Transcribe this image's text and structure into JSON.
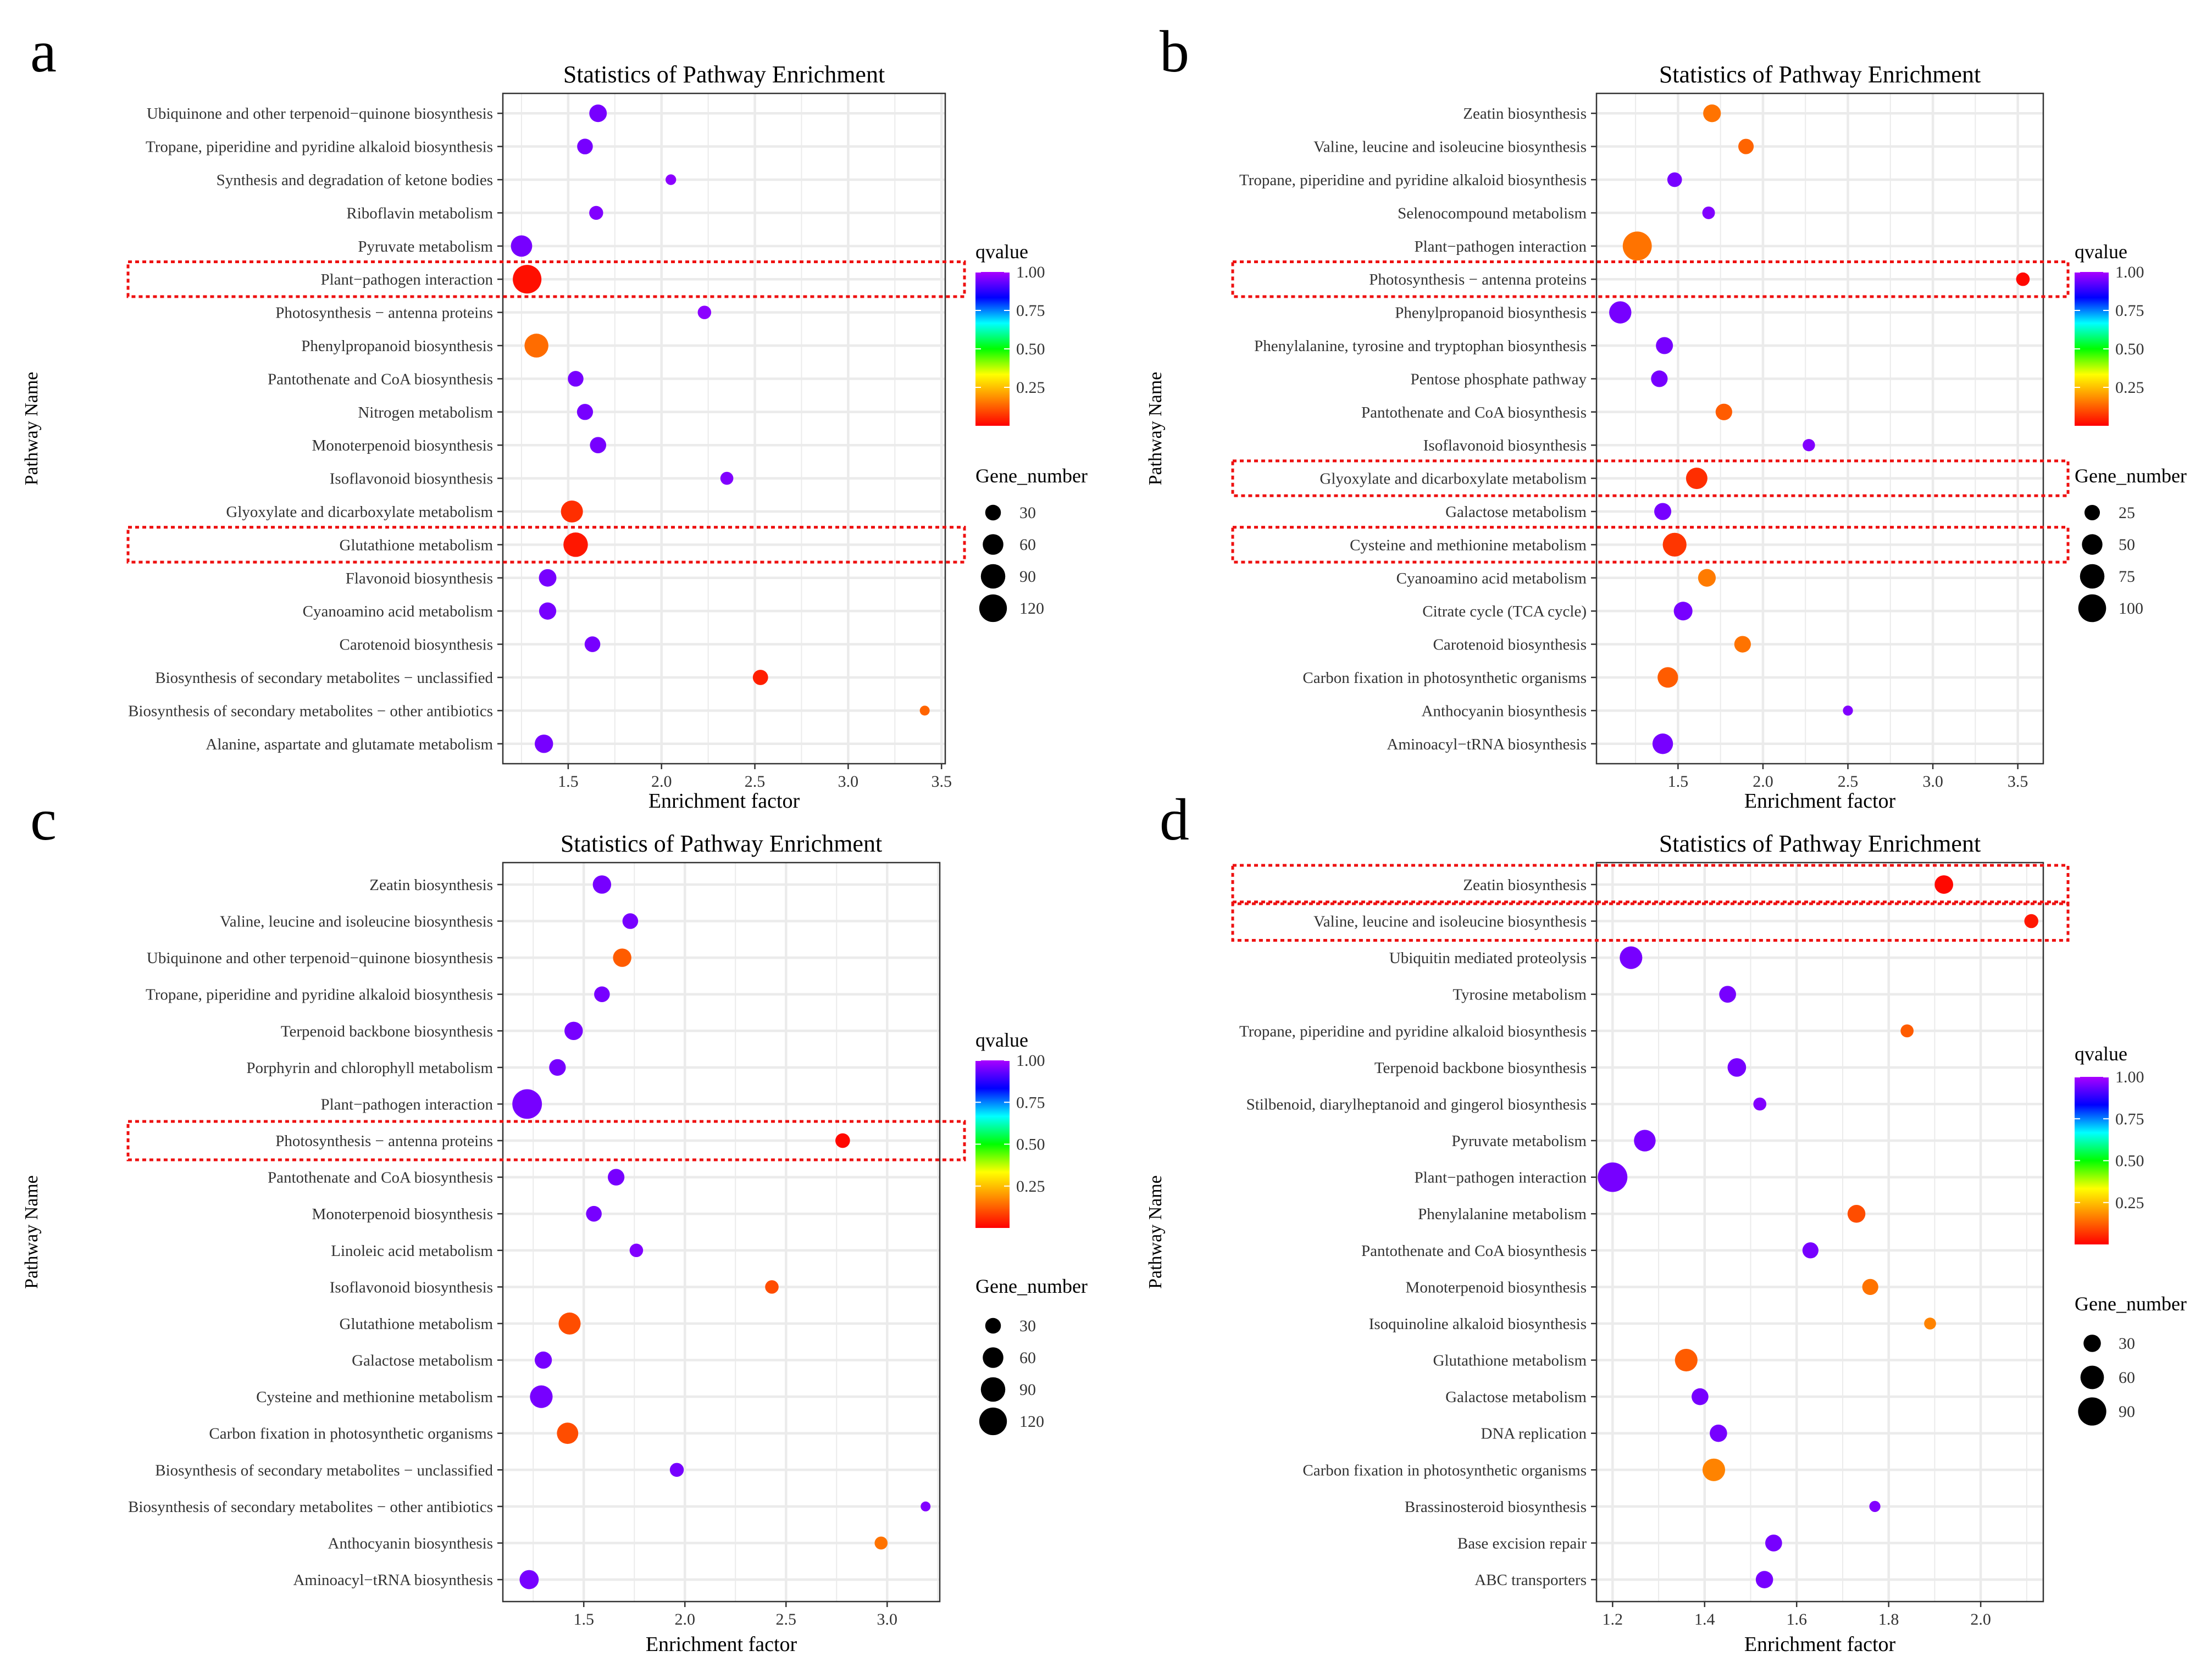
{
  "figure": {
    "colorbar": {
      "stops": [
        "#ff0000",
        "#ff8000",
        "#ffff00",
        "#00ff00",
        "#00ffff",
        "#0000ff",
        "#aa00ff"
      ]
    }
  },
  "chart_data": [
    {
      "panel_label": "a",
      "type": "scatter",
      "title": "Statistics of Pathway Enrichment",
      "xlabel": "Enrichment factor",
      "ylabel": "Pathway Name",
      "xlim": [
        1.15,
        3.52
      ],
      "xticks": [
        1.5,
        2.0,
        2.5,
        3.0,
        3.5
      ],
      "xtick_labels": [
        "1.5",
        "2.0",
        "2.5",
        "3.0",
        "3.5"
      ],
      "qvalue_legend": {
        "title": "qvalue",
        "ticks": [
          "1.00",
          "0.75",
          "0.50",
          "0.25"
        ]
      },
      "size_legend": {
        "title": "Gene_number",
        "values": [
          30,
          60,
          90,
          120
        ]
      },
      "size_domain": [
        5,
        140
      ],
      "highlighted": [
        "Plant−pathogen interaction",
        "Glutathione metabolism"
      ],
      "points": [
        {
          "name": "Ubiquinone and other terpenoid−quinone biosynthesis",
          "x": 1.66,
          "gene_number": 40,
          "qvalue": 0.95
        },
        {
          "name": "Tropane, piperidine and pyridine alkaloid biosynthesis",
          "x": 1.59,
          "gene_number": 30,
          "qvalue": 0.95
        },
        {
          "name": "Synthesis and degradation of ketone bodies",
          "x": 2.05,
          "gene_number": 10,
          "qvalue": 0.97
        },
        {
          "name": "Riboflavin metabolism",
          "x": 1.65,
          "gene_number": 22,
          "qvalue": 0.96
        },
        {
          "name": "Pyruvate metabolism",
          "x": 1.25,
          "gene_number": 65,
          "qvalue": 0.95
        },
        {
          "name": "Plant−pathogen interaction",
          "x": 1.28,
          "gene_number": 130,
          "qvalue": 0.02
        },
        {
          "name": "Photosynthesis − antenna proteins",
          "x": 2.23,
          "gene_number": 20,
          "qvalue": 0.97
        },
        {
          "name": "Phenylpropanoid biosynthesis",
          "x": 1.33,
          "gene_number": 85,
          "qvalue": 0.14
        },
        {
          "name": "Pantothenate and CoA biosynthesis",
          "x": 1.54,
          "gene_number": 30,
          "qvalue": 0.95
        },
        {
          "name": "Nitrogen metabolism",
          "x": 1.59,
          "gene_number": 32,
          "qvalue": 0.95
        },
        {
          "name": "Monoterpenoid biosynthesis",
          "x": 1.66,
          "gene_number": 33,
          "qvalue": 0.95
        },
        {
          "name": "Isoflavonoid biosynthesis",
          "x": 2.35,
          "gene_number": 18,
          "qvalue": 0.96
        },
        {
          "name": "Glyoxylate and dicarboxylate metabolism",
          "x": 1.52,
          "gene_number": 70,
          "qvalue": 0.06
        },
        {
          "name": "Glutathione metabolism",
          "x": 1.54,
          "gene_number": 90,
          "qvalue": 0.03
        },
        {
          "name": "Flavonoid biosynthesis",
          "x": 1.39,
          "gene_number": 40,
          "qvalue": 0.95
        },
        {
          "name": "Cyanoamino acid metabolism",
          "x": 1.39,
          "gene_number": 38,
          "qvalue": 0.95
        },
        {
          "name": "Carotenoid biosynthesis",
          "x": 1.63,
          "gene_number": 30,
          "qvalue": 0.95
        },
        {
          "name": "Biosynthesis of secondary metabolites − unclassified",
          "x": 2.53,
          "gene_number": 28,
          "qvalue": 0.04
        },
        {
          "name": "Biosynthesis of secondary metabolites − other antibiotics",
          "x": 3.41,
          "gene_number": 8,
          "qvalue": 0.13
        },
        {
          "name": "Alanine, aspartate and glutamate metabolism",
          "x": 1.37,
          "gene_number": 45,
          "qvalue": 0.95
        }
      ]
    },
    {
      "panel_label": "b",
      "type": "scatter",
      "title": "Statistics of Pathway Enrichment",
      "xlabel": "Enrichment factor",
      "ylabel": "Pathway Name",
      "xlim": [
        1.02,
        3.65
      ],
      "xticks": [
        1.5,
        2.0,
        2.5,
        3.0,
        3.5
      ],
      "xtick_labels": [
        "1.5",
        "2.0",
        "2.5",
        "3.0",
        "3.5"
      ],
      "qvalue_legend": {
        "title": "qvalue",
        "ticks": [
          "1.00",
          "0.75",
          "0.50",
          "0.25"
        ]
      },
      "size_legend": {
        "title": "Gene_number",
        "values": [
          25,
          50,
          75,
          100
        ]
      },
      "size_domain": [
        5,
        115
      ],
      "highlighted": [
        "Photosynthesis − antenna proteins",
        "Glyoxylate and dicarboxylate metabolism",
        "Cysteine and methionine metabolism"
      ],
      "points": [
        {
          "name": "Zeatin biosynthesis",
          "x": 1.7,
          "gene_number": 35,
          "qvalue": 0.15
        },
        {
          "name": "Valine, leucine and isoleucine biosynthesis",
          "x": 1.9,
          "gene_number": 25,
          "qvalue": 0.13
        },
        {
          "name": "Tropane, piperidine and pyridine alkaloid biosynthesis",
          "x": 1.48,
          "gene_number": 22,
          "qvalue": 0.95
        },
        {
          "name": "Selenocompound metabolism",
          "x": 1.68,
          "gene_number": 15,
          "qvalue": 0.96
        },
        {
          "name": "Plant−pathogen interaction",
          "x": 1.26,
          "gene_number": 110,
          "qvalue": 0.15
        },
        {
          "name": "Photosynthesis − antenna proteins",
          "x": 3.53,
          "gene_number": 18,
          "qvalue": 0.01
        },
        {
          "name": "Phenylpropanoid biosynthesis",
          "x": 1.16,
          "gene_number": 60,
          "qvalue": 0.95
        },
        {
          "name": "Phenylalanine, tyrosine and tryptophan biosynthesis",
          "x": 1.42,
          "gene_number": 32,
          "qvalue": 0.95
        },
        {
          "name": "Pentose phosphate pathway",
          "x": 1.39,
          "gene_number": 30,
          "qvalue": 0.95
        },
        {
          "name": "Pantothenate and CoA biosynthesis",
          "x": 1.77,
          "gene_number": 30,
          "qvalue": 0.12
        },
        {
          "name": "Isoflavonoid biosynthesis",
          "x": 2.27,
          "gene_number": 14,
          "qvalue": 0.96
        },
        {
          "name": "Glyoxylate and dicarboxylate metabolism",
          "x": 1.61,
          "gene_number": 55,
          "qvalue": 0.06
        },
        {
          "name": "Galactose metabolism",
          "x": 1.41,
          "gene_number": 32,
          "qvalue": 0.95
        },
        {
          "name": "Cysteine and methionine metabolism",
          "x": 1.48,
          "gene_number": 70,
          "qvalue": 0.07
        },
        {
          "name": "Cyanoamino acid metabolism",
          "x": 1.67,
          "gene_number": 35,
          "qvalue": 0.16
        },
        {
          "name": "Citrate cycle (TCA cycle)",
          "x": 1.53,
          "gene_number": 40,
          "qvalue": 0.95
        },
        {
          "name": "Carotenoid biosynthesis",
          "x": 1.88,
          "gene_number": 30,
          "qvalue": 0.15
        },
        {
          "name": "Carbon fixation in photosynthetic organisms",
          "x": 1.44,
          "gene_number": 50,
          "qvalue": 0.12
        },
        {
          "name": "Anthocyanin biosynthesis",
          "x": 2.5,
          "gene_number": 8,
          "qvalue": 0.96
        },
        {
          "name": "Aminoacyl−tRNA biosynthesis",
          "x": 1.41,
          "gene_number": 50,
          "qvalue": 0.95
        }
      ]
    },
    {
      "panel_label": "c",
      "type": "scatter",
      "title": "Statistics of Pathway Enrichment",
      "xlabel": "Enrichment factor",
      "ylabel": "Pathway Name",
      "xlim": [
        1.1,
        3.26
      ],
      "xticks": [
        1.5,
        2.0,
        2.5,
        3.0
      ],
      "xtick_labels": [
        "1.5",
        "2.0",
        "2.5",
        "3.0"
      ],
      "qvalue_legend": {
        "title": "qvalue",
        "ticks": [
          "1.00",
          "0.75",
          "0.50",
          "0.25"
        ]
      },
      "size_legend": {
        "title": "Gene_number",
        "values": [
          30,
          60,
          90,
          120
        ]
      },
      "size_domain": [
        5,
        140
      ],
      "highlighted": [
        "Photosynthesis − antenna proteins"
      ],
      "points": [
        {
          "name": "Zeatin biosynthesis",
          "x": 1.59,
          "gene_number": 45,
          "qvalue": 0.95
        },
        {
          "name": "Valine, leucine and isoleucine biosynthesis",
          "x": 1.73,
          "gene_number": 30,
          "qvalue": 0.95
        },
        {
          "name": "Ubiquinone and other terpenoid−quinone biosynthesis",
          "x": 1.69,
          "gene_number": 45,
          "qvalue": 0.12
        },
        {
          "name": "Tropane, piperidine and pyridine alkaloid biosynthesis",
          "x": 1.59,
          "gene_number": 30,
          "qvalue": 0.95
        },
        {
          "name": "Terpenoid backbone biosynthesis",
          "x": 1.45,
          "gene_number": 45,
          "qvalue": 0.95
        },
        {
          "name": "Porphyrin and chlorophyll metabolism",
          "x": 1.37,
          "gene_number": 35,
          "qvalue": 0.95
        },
        {
          "name": "Plant−pathogen interaction",
          "x": 1.22,
          "gene_number": 140,
          "qvalue": 0.95
        },
        {
          "name": "Photosynthesis − antenna proteins",
          "x": 2.78,
          "gene_number": 25,
          "qvalue": 0.01
        },
        {
          "name": "Pantothenate and CoA biosynthesis",
          "x": 1.66,
          "gene_number": 35,
          "qvalue": 0.95
        },
        {
          "name": "Monoterpenoid biosynthesis",
          "x": 1.55,
          "gene_number": 30,
          "qvalue": 0.95
        },
        {
          "name": "Linoleic acid metabolism",
          "x": 1.76,
          "gene_number": 20,
          "qvalue": 0.96
        },
        {
          "name": "Isoflavonoid biosynthesis",
          "x": 2.43,
          "gene_number": 20,
          "qvalue": 0.1
        },
        {
          "name": "Glutathione metabolism",
          "x": 1.43,
          "gene_number": 70,
          "qvalue": 0.1
        },
        {
          "name": "Galactose metabolism",
          "x": 1.3,
          "gene_number": 38,
          "qvalue": 0.95
        },
        {
          "name": "Cysteine and methionine metabolism",
          "x": 1.29,
          "gene_number": 75,
          "qvalue": 0.95
        },
        {
          "name": "Carbon fixation in photosynthetic organisms",
          "x": 1.42,
          "gene_number": 65,
          "qvalue": 0.1
        },
        {
          "name": "Biosynthesis of secondary metabolites − unclassified",
          "x": 1.96,
          "gene_number": 22,
          "qvalue": 0.95
        },
        {
          "name": "Biosynthesis of secondary metabolites − other antibiotics",
          "x": 3.19,
          "gene_number": 8,
          "qvalue": 0.96
        },
        {
          "name": "Anthocyanin biosynthesis",
          "x": 2.97,
          "gene_number": 18,
          "qvalue": 0.15
        },
        {
          "name": "Aminoacyl−tRNA biosynthesis",
          "x": 1.23,
          "gene_number": 50,
          "qvalue": 0.95
        }
      ]
    },
    {
      "panel_label": "d",
      "type": "scatter",
      "title": "Statistics of Pathway Enrichment",
      "xlabel": "Enrichment factor",
      "ylabel": "Pathway Name",
      "xlim": [
        1.165,
        2.136
      ],
      "xticks": [
        1.2,
        1.4,
        1.6,
        1.8,
        2.0
      ],
      "xtick_labels": [
        "1.2",
        "1.4",
        "1.6",
        "1.8",
        "2.0"
      ],
      "qvalue_legend": {
        "title": "qvalue",
        "ticks": [
          "1.00",
          "0.75",
          "0.50",
          "0.25"
        ]
      },
      "size_legend": {
        "title": "Gene_number",
        "values": [
          30,
          60,
          90
        ]
      },
      "size_domain": [
        5,
        100
      ],
      "highlighted": [
        "Zeatin biosynthesis",
        "Valine, leucine and isoleucine biosynthesis"
      ],
      "points": [
        {
          "name": "Zeatin biosynthesis",
          "x": 1.92,
          "gene_number": 35,
          "qvalue": 0.01
        },
        {
          "name": "Valine, leucine and isoleucine biosynthesis",
          "x": 2.11,
          "gene_number": 18,
          "qvalue": 0.03
        },
        {
          "name": "Ubiquitin mediated proteolysis",
          "x": 1.24,
          "gene_number": 55,
          "qvalue": 0.95
        },
        {
          "name": "Tyrosine metabolism",
          "x": 1.45,
          "gene_number": 28,
          "qvalue": 0.95
        },
        {
          "name": "Tropane, piperidine and pyridine alkaloid biosynthesis",
          "x": 1.84,
          "gene_number": 15,
          "qvalue": 0.12
        },
        {
          "name": "Terpenoid backbone biosynthesis",
          "x": 1.47,
          "gene_number": 35,
          "qvalue": 0.95
        },
        {
          "name": "Stilbenoid, diarylheptanoid and gingerol biosynthesis",
          "x": 1.52,
          "gene_number": 15,
          "qvalue": 0.96
        },
        {
          "name": "Pyruvate metabolism",
          "x": 1.27,
          "gene_number": 50,
          "qvalue": 0.95
        },
        {
          "name": "Plant−pathogen interaction",
          "x": 1.2,
          "gene_number": 100,
          "qvalue": 0.95
        },
        {
          "name": "Phenylalanine metabolism",
          "x": 1.73,
          "gene_number": 32,
          "qvalue": 0.1
        },
        {
          "name": "Pantothenate and CoA biosynthesis",
          "x": 1.63,
          "gene_number": 25,
          "qvalue": 0.95
        },
        {
          "name": "Monoterpenoid biosynthesis",
          "x": 1.76,
          "gene_number": 25,
          "qvalue": 0.15
        },
        {
          "name": "Isoquinoline alkaloid biosynthesis",
          "x": 1.89,
          "gene_number": 12,
          "qvalue": 0.17
        },
        {
          "name": "Glutathione metabolism",
          "x": 1.36,
          "gene_number": 55,
          "qvalue": 0.12
        },
        {
          "name": "Galactose metabolism",
          "x": 1.39,
          "gene_number": 28,
          "qvalue": 0.95
        },
        {
          "name": "DNA replication",
          "x": 1.43,
          "gene_number": 30,
          "qvalue": 0.95
        },
        {
          "name": "Carbon fixation in photosynthetic organisms",
          "x": 1.42,
          "gene_number": 55,
          "qvalue": 0.17
        },
        {
          "name": "Brassinosteroid biosynthesis",
          "x": 1.77,
          "gene_number": 10,
          "qvalue": 0.96
        },
        {
          "name": "Base excision repair",
          "x": 1.55,
          "gene_number": 28,
          "qvalue": 0.95
        },
        {
          "name": "ABC transporters",
          "x": 1.53,
          "gene_number": 30,
          "qvalue": 0.95
        }
      ]
    }
  ]
}
